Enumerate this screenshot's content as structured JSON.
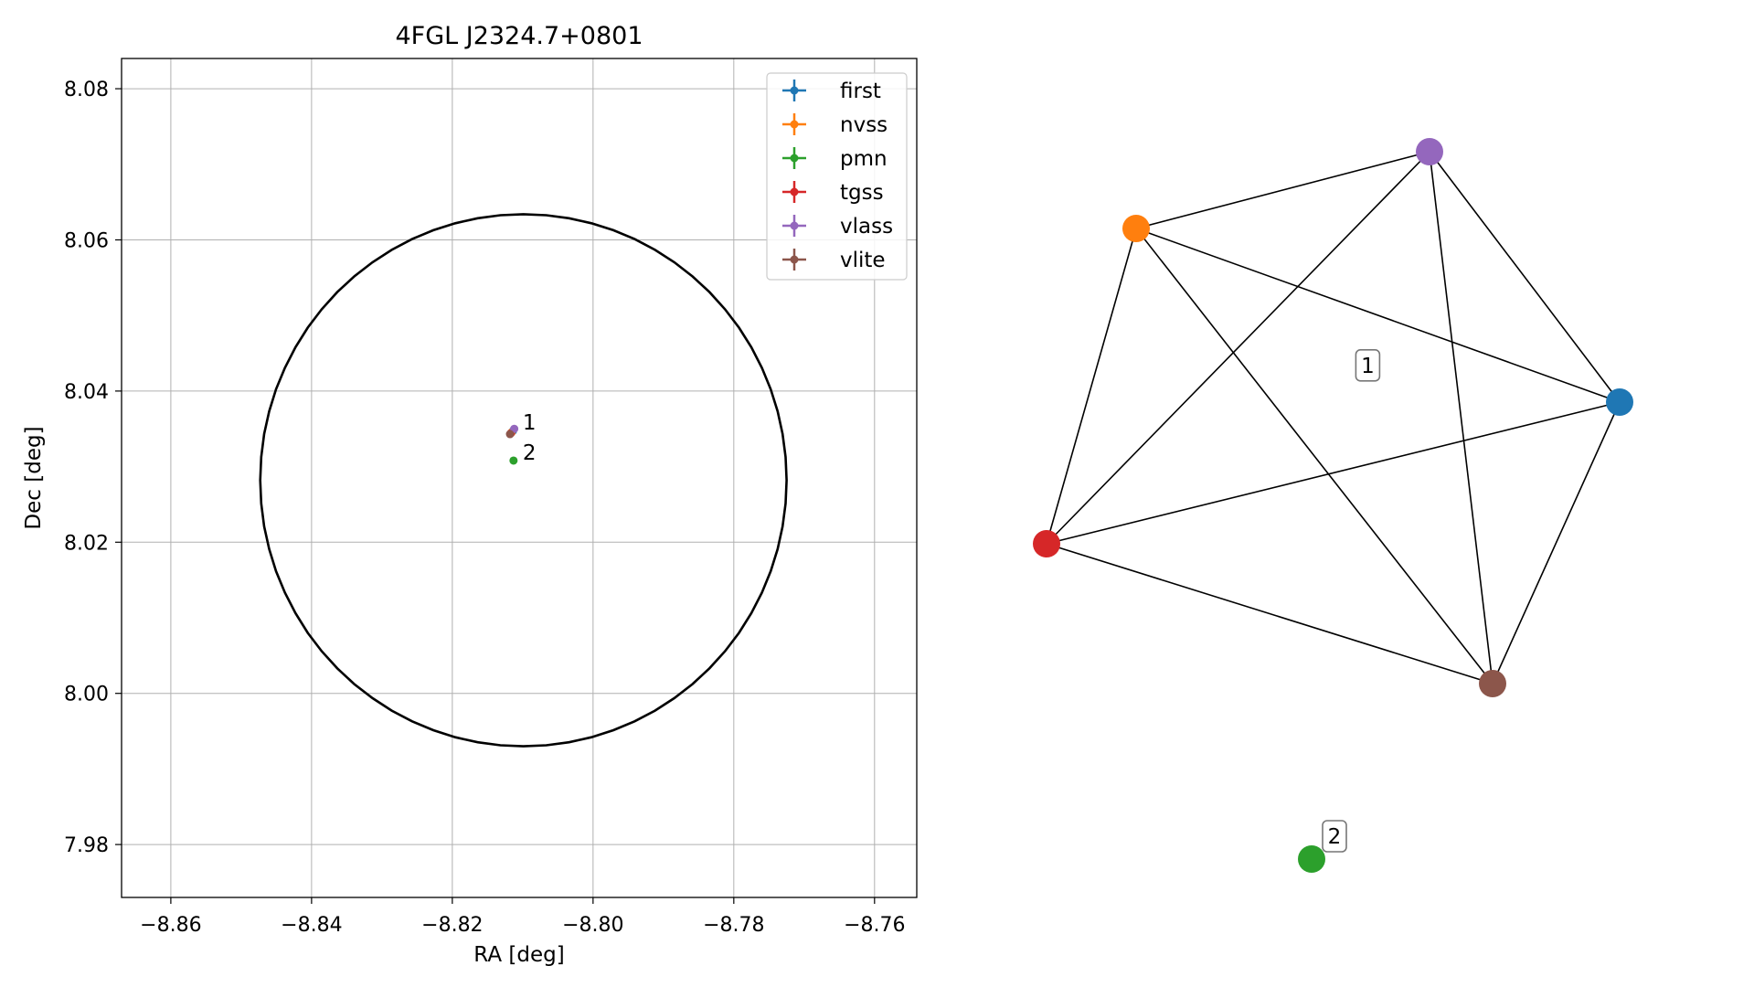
{
  "scatter": {
    "type": "scatter",
    "title": "4FGL J2324.7+0801",
    "xlabel": "RA [deg]",
    "ylabel": "Dec [deg]",
    "xlim": [
      -8.867,
      -8.754
    ],
    "ylim": [
      7.973,
      8.084
    ],
    "xticks": [
      -8.86,
      -8.84,
      -8.82,
      -8.8,
      -8.78,
      -8.76
    ],
    "xtick_labels": [
      "−8.86",
      "−8.84",
      "−8.82",
      "−8.80",
      "−8.78",
      "−8.76"
    ],
    "yticks": [
      7.98,
      8.0,
      8.02,
      8.04,
      8.06,
      8.08
    ],
    "ytick_labels": [
      "7.98",
      "8.00",
      "8.02",
      "8.04",
      "8.06",
      "8.08"
    ],
    "grid": true,
    "legend_position": "top-right",
    "ellipse": {
      "center": [
        -8.8099,
        8.0282
      ],
      "radius_x": 0.0374,
      "radius_y": 0.0352,
      "color": "#000000"
    },
    "series": [
      {
        "name": "first",
        "color": "#1f77b4",
        "x": [
          -8.8114
        ],
        "y": [
          8.0347
        ]
      },
      {
        "name": "nvss",
        "color": "#ff7f0e",
        "x": [
          -8.8116
        ],
        "y": [
          8.0345
        ]
      },
      {
        "name": "pmn",
        "color": "#2ca02c",
        "x": [
          -8.8113
        ],
        "y": [
          8.0308
        ]
      },
      {
        "name": "tgss",
        "color": "#d62728",
        "x": [
          -8.8117
        ],
        "y": [
          8.0344
        ]
      },
      {
        "name": "vlass",
        "color": "#9467bd",
        "x": [
          -8.8112
        ],
        "y": [
          8.035
        ]
      },
      {
        "name": "vlite",
        "color": "#8c564b",
        "x": [
          -8.8118
        ],
        "y": [
          8.0343
        ]
      }
    ],
    "annotations": [
      {
        "text": "1",
        "x": -8.81,
        "y": 8.0359
      },
      {
        "text": "2",
        "x": -8.81,
        "y": 8.0319
      }
    ]
  },
  "graph": {
    "type": "network",
    "nodes": [
      {
        "id": "first",
        "color": "#1f77b4"
      },
      {
        "id": "nvss",
        "color": "#ff7f0e"
      },
      {
        "id": "pmn",
        "color": "#2ca02c"
      },
      {
        "id": "tgss",
        "color": "#d62728"
      },
      {
        "id": "vlass",
        "color": "#9467bd"
      },
      {
        "id": "vlite",
        "color": "#8c564b"
      }
    ],
    "edges": [
      [
        "nvss",
        "vlass"
      ],
      [
        "nvss",
        "first"
      ],
      [
        "nvss",
        "tgss"
      ],
      [
        "nvss",
        "vlite"
      ],
      [
        "vlass",
        "tgss"
      ],
      [
        "vlass",
        "first"
      ],
      [
        "vlass",
        "vlite"
      ],
      [
        "first",
        "tgss"
      ],
      [
        "first",
        "vlite"
      ],
      [
        "tgss",
        "vlite"
      ]
    ],
    "cluster_labels": [
      {
        "text": "1",
        "members": [
          "first",
          "nvss",
          "tgss",
          "vlass",
          "vlite"
        ]
      },
      {
        "text": "2",
        "members": [
          "pmn"
        ]
      }
    ]
  }
}
